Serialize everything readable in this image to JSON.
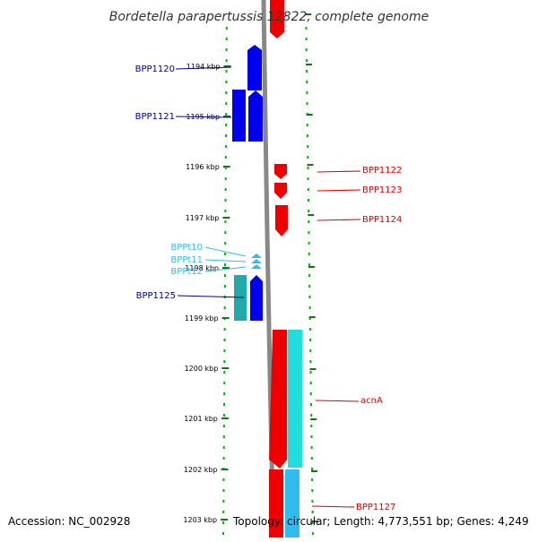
{
  "title": "Bordetella parapertussis 12822, complete genome",
  "footer": {
    "accession": "Accession: NC_002928",
    "summary": "Topology: circular; Length: 4,773,551 bp; Genes: 4,249"
  },
  "colors": {
    "forward": "#0000ee",
    "reverse": "#ee0000",
    "rna_label": "#33bbee",
    "teal": "#22aaaa",
    "cyan": "#22dddd",
    "dots": "#11aa11",
    "backbone": "#888888"
  },
  "ticks": [
    "1194 kbp",
    "1195 kbp",
    "1196 kbp",
    "1197 kbp",
    "1198 kbp",
    "1199 kbp",
    "1200 kbp",
    "1201 kbp",
    "1202 kbp",
    "1203 kbp"
  ],
  "left_labels": [
    {
      "text": "BPP1120",
      "color": "#00008b"
    },
    {
      "text": "BPP1121",
      "color": "#00008b"
    },
    {
      "text": "BPPt10",
      "color": "#33bbee"
    },
    {
      "text": "BPPt11",
      "color": "#33bbee"
    },
    {
      "text": "BPPt12",
      "color": "#33bbee"
    },
    {
      "text": "BPP1125",
      "color": "#00008b"
    }
  ],
  "right_labels": [
    {
      "text": "BPP1122",
      "color": "#dd0000"
    },
    {
      "text": "BPP1123",
      "color": "#dd0000"
    },
    {
      "text": "BPP1124",
      "color": "#dd0000"
    },
    {
      "text": "acnA",
      "color": "#dd0000"
    },
    {
      "text": "BPP1127",
      "color": "#dd0000"
    }
  ]
}
